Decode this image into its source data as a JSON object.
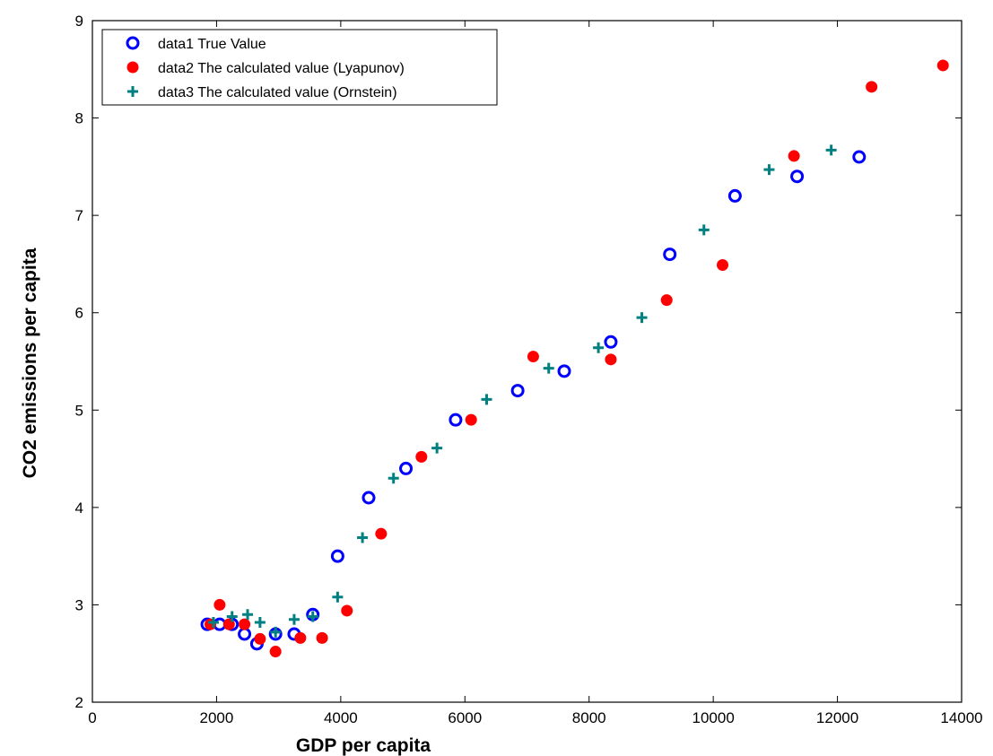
{
  "chart_data": {
    "type": "scatter",
    "title": "",
    "xlabel": "GDP per capita",
    "ylabel": "CO2 emissions per capita",
    "xlim": [
      0,
      14000
    ],
    "ylim": [
      2,
      9
    ],
    "xticks": [
      "0",
      "2000",
      "4000",
      "6000",
      "8000",
      "10000",
      "12000",
      "14000"
    ],
    "yticks": [
      "2",
      "3",
      "4",
      "5",
      "6",
      "7",
      "8",
      "9"
    ],
    "grid": false,
    "legend_position": "top-left",
    "series": [
      {
        "name": "data1 True Value",
        "marker": "circle-open",
        "color": "#0000ff",
        "x": [
          1850,
          2050,
          2250,
          2450,
          2650,
          2950,
          3250,
          3550,
          3950,
          4450,
          5050,
          5850,
          6850,
          7600,
          8350,
          9300,
          10350,
          11350,
          12350
        ],
        "y": [
          2.8,
          2.8,
          2.8,
          2.7,
          2.6,
          2.7,
          2.7,
          2.9,
          3.5,
          4.1,
          4.4,
          4.9,
          5.2,
          5.4,
          5.7,
          6.6,
          7.2,
          7.4,
          7.6
        ]
      },
      {
        "name": "data2 The calculated value (Lyapunov)",
        "marker": "circle-filled",
        "color": "#ff0000",
        "x": [
          1900,
          2050,
          2200,
          2450,
          2700,
          2950,
          3350,
          3700,
          4100,
          4650,
          5300,
          6100,
          7100,
          8350,
          9250,
          10150,
          11300,
          12550,
          13700
        ],
        "y": [
          2.8,
          3.0,
          2.8,
          2.8,
          2.65,
          2.52,
          2.66,
          2.66,
          2.94,
          3.73,
          4.52,
          4.9,
          5.55,
          5.52,
          6.13,
          6.49,
          7.61,
          8.32,
          8.54
        ]
      },
      {
        "name": "data3 The calculated value (Ornstein)",
        "marker": "plus",
        "color": "#008080",
        "x": [
          1950,
          2250,
          2500,
          2700,
          2950,
          3250,
          3550,
          3950,
          4350,
          4850,
          5550,
          6350,
          7350,
          8150,
          8850,
          9850,
          10900,
          11900
        ],
        "y": [
          2.82,
          2.88,
          2.9,
          2.82,
          2.72,
          2.85,
          2.88,
          3.08,
          3.69,
          4.3,
          4.61,
          5.11,
          5.43,
          5.64,
          5.95,
          6.85,
          7.47,
          7.67
        ]
      }
    ]
  }
}
